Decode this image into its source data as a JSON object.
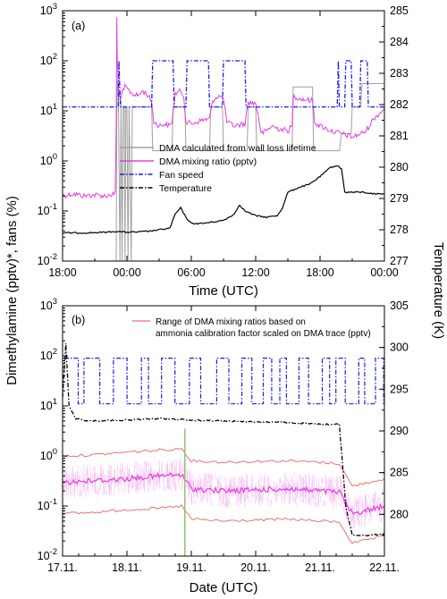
{
  "chart_data": [
    {
      "panel": "(a)",
      "type": "line",
      "xlabel": "Time (UTC)",
      "x_ticks": [
        "18:00",
        "00:00",
        "06:00",
        "12:00",
        "18:00",
        "00:00"
      ],
      "x_tick_hours": [
        0,
        6,
        12,
        18,
        24,
        30
      ],
      "xlim_hours": [
        0,
        30
      ],
      "ylabel_left": "Dimethylamine (pptv)*, fans (%)",
      "ylabel_right": "Temperature (K)",
      "ylim_left_log": [
        0.01,
        1000
      ],
      "y_left_ticks": [
        "10",
        "10",
        "10",
        "10",
        "10",
        "10"
      ],
      "y_left_tick_exponents": [
        "-2",
        "-1",
        "0",
        "1",
        "2",
        "3"
      ],
      "ylim_right": [
        277,
        285
      ],
      "y_right_ticks": [
        "277",
        "278",
        "279",
        "280",
        "281",
        "282",
        "283",
        "284",
        "285"
      ],
      "legend_position": "lower-middle",
      "series": [
        {
          "name": "DMA calculated from wall loss lifetime",
          "color": "#a0a0a0",
          "axis": "left",
          "points": [
            [
              5.0,
              0.01
            ],
            [
              5.05,
              8
            ],
            [
              5.12,
              40
            ],
            [
              5.2,
              20
            ],
            [
              5.35,
              0.01
            ],
            [
              5.45,
              15
            ],
            [
              5.55,
              0.01
            ],
            [
              5.65,
              12
            ],
            [
              5.75,
              12
            ],
            [
              5.82,
              0.01
            ],
            [
              5.9,
              12
            ],
            [
              6.0,
              12
            ],
            [
              6.1,
              0.01
            ],
            [
              6.2,
              12
            ],
            [
              6.4,
              0.01
            ],
            [
              6.5,
              12
            ],
            [
              8.3,
              12
            ],
            [
              8.4,
              1.6
            ],
            [
              10.2,
              1.6
            ],
            [
              10.3,
              12
            ],
            [
              11.4,
              12
            ],
            [
              11.5,
              1.6
            ],
            [
              13.7,
              1.6
            ],
            [
              13.8,
              12
            ],
            [
              14.9,
              12
            ],
            [
              15.0,
              1.6
            ],
            [
              17.2,
              1.6
            ],
            [
              17.3,
              12
            ],
            [
              18.0,
              12
            ],
            [
              18.1,
              1.6
            ],
            [
              19.8,
              1.6
            ],
            [
              20.0,
              1.6
            ],
            [
              21.0,
              1.6
            ],
            [
              21.4,
              1.6
            ],
            [
              21.5,
              30
            ],
            [
              23.3,
              30
            ],
            [
              23.4,
              1.6
            ],
            [
              24.0,
              1.6
            ],
            [
              25.8,
              1.6
            ],
            [
              26.0,
              3.5
            ],
            [
              26.9,
              3.5
            ],
            [
              27.0,
              12
            ],
            [
              27.8,
              12
            ],
            [
              27.9,
              35
            ],
            [
              30.0,
              35
            ]
          ]
        },
        {
          "name": "DMA mixing ratio (pptv)",
          "color": "#e040e0",
          "axis": "left",
          "points": [
            [
              0,
              0.2
            ],
            [
              1,
              0.22
            ],
            [
              2,
              0.2
            ],
            [
              3,
              0.21
            ],
            [
              4,
              0.2
            ],
            [
              4.9,
              0.22
            ],
            [
              5.0,
              5
            ],
            [
              5.05,
              700
            ],
            [
              5.1,
              100
            ],
            [
              5.2,
              30
            ],
            [
              5.4,
              15
            ],
            [
              5.6,
              25
            ],
            [
              5.8,
              30
            ],
            [
              6.0,
              28
            ],
            [
              6.5,
              22
            ],
            [
              7,
              20
            ],
            [
              7.5,
              25
            ],
            [
              8,
              20
            ],
            [
              8.3,
              15
            ],
            [
              8.5,
              6
            ],
            [
              9,
              5
            ],
            [
              9.5,
              5.5
            ],
            [
              10,
              5
            ],
            [
              10.2,
              6
            ],
            [
              10.5,
              22
            ],
            [
              11,
              25
            ],
            [
              11.3,
              20
            ],
            [
              11.5,
              6
            ],
            [
              12,
              5.5
            ],
            [
              12.5,
              6
            ],
            [
              13,
              6.5
            ],
            [
              13.7,
              7
            ],
            [
              14,
              16
            ],
            [
              14.5,
              20
            ],
            [
              15,
              18
            ],
            [
              15.3,
              6
            ],
            [
              16,
              5
            ],
            [
              17,
              5.5
            ],
            [
              17.3,
              15
            ],
            [
              18,
              14
            ],
            [
              18.3,
              7
            ],
            [
              18.5,
              3.5
            ],
            [
              19,
              4
            ],
            [
              19.5,
              5
            ],
            [
              20,
              4.5
            ],
            [
              21,
              4
            ],
            [
              21.4,
              5
            ],
            [
              21.5,
              20
            ],
            [
              22,
              18
            ],
            [
              22.5,
              17
            ],
            [
              23.3,
              16
            ],
            [
              23.5,
              6
            ],
            [
              24,
              5
            ],
            [
              25,
              4
            ],
            [
              26,
              3.5
            ],
            [
              27,
              3
            ],
            [
              27.8,
              3.5
            ],
            [
              28.3,
              4
            ],
            [
              29,
              7
            ],
            [
              30,
              11
            ]
          ]
        },
        {
          "name": "Fan speed",
          "color": "#1a1aee",
          "axis": "left",
          "points": [
            [
              0,
              12
            ],
            [
              5.2,
              12
            ],
            [
              5.25,
              100
            ],
            [
              5.4,
              12
            ],
            [
              8.3,
              12
            ],
            [
              8.4,
              100
            ],
            [
              10.3,
              100
            ],
            [
              10.4,
              12
            ],
            [
              11.5,
              12
            ],
            [
              11.6,
              100
            ],
            [
              13.6,
              100
            ],
            [
              13.7,
              12
            ],
            [
              14.9,
              12
            ],
            [
              15.0,
              100
            ],
            [
              17.0,
              100
            ],
            [
              17.1,
              12
            ],
            [
              25.6,
              12
            ],
            [
              25.7,
              100
            ],
            [
              25.8,
              12
            ],
            [
              26.3,
              12
            ],
            [
              26.4,
              100
            ],
            [
              26.9,
              100
            ],
            [
              27.0,
              12
            ],
            [
              27.7,
              12
            ],
            [
              27.8,
              100
            ],
            [
              28.4,
              100
            ],
            [
              28.5,
              12
            ],
            [
              30,
              12
            ]
          ]
        },
        {
          "name": "Temperature",
          "color": "#000000",
          "axis": "right",
          "points": [
            [
              0,
              277.9
            ],
            [
              2,
              277.9
            ],
            [
              4,
              277.92
            ],
            [
              5,
              277.95
            ],
            [
              6,
              277.92
            ],
            [
              7,
              277.93
            ],
            [
              8,
              277.95
            ],
            [
              9,
              278.0
            ],
            [
              10,
              278.05
            ],
            [
              10.5,
              278.5
            ],
            [
              11,
              278.7
            ],
            [
              11.5,
              278.4
            ],
            [
              12,
              278.2
            ],
            [
              13,
              278.2
            ],
            [
              14,
              278.25
            ],
            [
              15,
              278.3
            ],
            [
              16,
              278.5
            ],
            [
              16.5,
              278.8
            ],
            [
              17,
              278.6
            ],
            [
              18,
              278.45
            ],
            [
              19,
              278.4
            ],
            [
              20,
              278.45
            ],
            [
              20.5,
              278.7
            ],
            [
              21,
              279.2
            ],
            [
              22,
              279.35
            ],
            [
              23,
              279.45
            ],
            [
              24,
              279.7
            ],
            [
              25,
              280.0
            ],
            [
              25.6,
              280.05
            ],
            [
              26,
              279.95
            ],
            [
              26.3,
              279.2
            ],
            [
              27,
              279.2
            ],
            [
              28,
              279.2
            ],
            [
              29,
              279.15
            ],
            [
              30,
              279.15
            ]
          ]
        }
      ]
    },
    {
      "panel": "(b)",
      "type": "line",
      "xlabel": "Date (UTC)",
      "x_ticks": [
        "17.11.",
        "18.11.",
        "19.11.",
        "20.11.",
        "21.11.",
        "22.11."
      ],
      "x_tick_dates": [
        "17.11.",
        "18.11.",
        "19.11.",
        "20.11.",
        "21.11.",
        "22.11."
      ],
      "ylim_left_log": [
        0.01,
        1000
      ],
      "y_left_ticks": [
        "10",
        "10",
        "10",
        "10",
        "10",
        "10"
      ],
      "y_left_tick_exponents": [
        "-2",
        "-1",
        "0",
        "1",
        "2",
        "3"
      ],
      "ylim_right": [
        275,
        305
      ],
      "y_right_ticks": [
        "280",
        "285",
        "290",
        "295",
        "300",
        "305"
      ],
      "legend_position": "top",
      "series": [
        {
          "name": "Range of DMA mixing ratios based on ammonia calibration factor scaled on DMA trace (pptv)",
          "color": "#ee7070",
          "axis": "left",
          "upper": [
            [
              "17.11. 00:00",
              1.0
            ],
            [
              "17.11. 12:00",
              1.05
            ],
            [
              "18.11. 00:00",
              1.2
            ],
            [
              "18.11. 12:00",
              1.3
            ],
            [
              "18.11. 20:24",
              1.4
            ],
            [
              "19.11. 00:00",
              0.8
            ],
            [
              "19.11. 12:00",
              0.75
            ],
            [
              "20.11. 00:00",
              0.78
            ],
            [
              "20.11. 12:00",
              0.8
            ],
            [
              "21.11. 00:00",
              0.75
            ],
            [
              "21.11. 07:12",
              0.7
            ],
            [
              "21.11. 12:00",
              0.25
            ],
            [
              "22.11. 00:00",
              0.35
            ]
          ],
          "lower": [
            [
              "17.11. 00:00",
              0.07
            ],
            [
              "17.11. 12:00",
              0.075
            ],
            [
              "18.11. 00:00",
              0.085
            ],
            [
              "18.11. 12:00",
              0.09
            ],
            [
              "18.11. 20:24",
              0.1
            ],
            [
              "19.11. 00:00",
              0.055
            ],
            [
              "19.11. 12:00",
              0.05
            ],
            [
              "20.11. 00:00",
              0.052
            ],
            [
              "20.11. 12:00",
              0.055
            ],
            [
              "21.11. 00:00",
              0.05
            ],
            [
              "21.11. 07:12",
              0.048
            ],
            [
              "21.11. 12:00",
              0.018
            ],
            [
              "22.11. 00:00",
              0.025
            ]
          ]
        },
        {
          "name": "DMA mixing ratio (pptv)",
          "color": "#e040e0",
          "axis": "left",
          "points": [
            [
              "17.11. 00:00",
              0.3
            ],
            [
              "17.11. 12:00",
              0.32
            ],
            [
              "18.11. 00:00",
              0.35
            ],
            [
              "18.11. 12:00",
              0.4
            ],
            [
              "18.11. 20:24",
              0.42
            ],
            [
              "19.11. 00:00",
              0.22
            ],
            [
              "19.11. 12:00",
              0.2
            ],
            [
              "20.11. 00:00",
              0.21
            ],
            [
              "20.11. 12:00",
              0.22
            ],
            [
              "21.11. 00:00",
              0.2
            ],
            [
              "21.11. 07:12",
              0.19
            ],
            [
              "21.11. 12:00",
              0.07
            ],
            [
              "22.11. 00:00",
              0.1
            ]
          ]
        },
        {
          "name": "Fan speed",
          "color": "#1a1aee",
          "axis": "left",
          "low": 11,
          "high": 90
        },
        {
          "name": "Temperature",
          "color": "#000000",
          "axis": "right",
          "points": [
            [
              "17.11. 00:00",
              294
            ],
            [
              "17.11. 01:12",
              300.5
            ],
            [
              "17.11. 02:24",
              293
            ],
            [
              "17.11. 04:48",
              291.5
            ],
            [
              "17.11. 09:36",
              291.2
            ],
            [
              "18.11. 00:00",
              291.3
            ],
            [
              "18.11. 12:00",
              291.5
            ],
            [
              "19.11. 00:00",
              291.3
            ],
            [
              "19.11. 12:00",
              291.2
            ],
            [
              "20.11. 00:00",
              291.1
            ],
            [
              "20.11. 12:00",
              291.0
            ],
            [
              "21.11. 00:00",
              290.8
            ],
            [
              "21.11. 07:12",
              290.8
            ],
            [
              "21.11. 09:36",
              281
            ],
            [
              "21.11. 12:00",
              277.5
            ],
            [
              "21.11. 19:12",
              277.5
            ],
            [
              "22.11. 00:00",
              277.7
            ]
          ]
        },
        {
          "name": "marker line",
          "color": "#90c070",
          "axis": "left",
          "vertical_at": "18.11. 21:36",
          "range": [
            0.01,
            3.5
          ]
        }
      ]
    }
  ],
  "shared": {
    "ylabel_left": "Dimethylamine (pptv)*, fans (%)",
    "ylabel_right": "Temperature (K)"
  }
}
